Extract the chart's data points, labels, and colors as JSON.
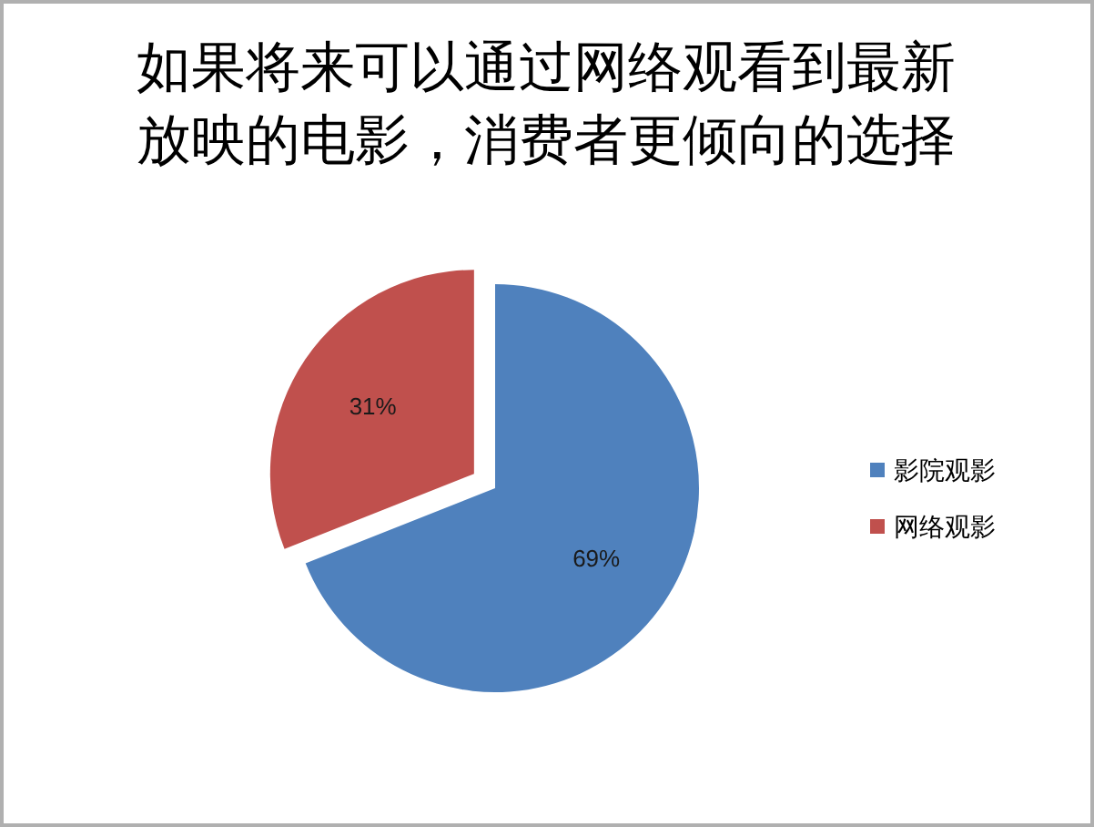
{
  "chart_data": {
    "type": "pie",
    "title": "如果将来可以通过网络观看到最新放映的电影，消费者更倾向的选择",
    "categories": [
      "影院观影",
      "网络观影"
    ],
    "values": [
      69,
      31
    ],
    "colors": [
      "#4f81bd",
      "#c0504d"
    ],
    "value_labels": [
      "69%",
      "31%"
    ],
    "legend": "right"
  }
}
